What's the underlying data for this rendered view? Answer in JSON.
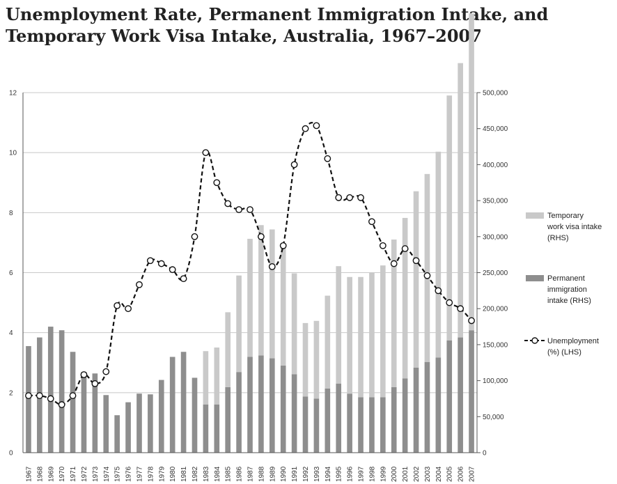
{
  "title": "Unemployment Rate, Permanent Immigration Intake, and Temporary Work Visa Intake, Australia, 1967–2007",
  "chart_data": {
    "type": "bar",
    "title": "Unemployment Rate, Permanent Immigration Intake, and Temporary Work Visa Intake, Australia, 1967–2007",
    "categories": [
      "1967",
      "1968",
      "1969",
      "1970",
      "1971",
      "1972",
      "1973",
      "1974",
      "1975",
      "1976",
      "1977",
      "1978",
      "1979",
      "1980",
      "1981",
      "1982",
      "1983",
      "1984",
      "1985",
      "1986",
      "1987",
      "1988",
      "1989",
      "1990",
      "1991",
      "1992",
      "1993",
      "1994",
      "1995",
      "1996",
      "1997",
      "1998",
      "1999",
      "2000",
      "2001",
      "2002",
      "2003",
      "2004",
      "2005",
      "2006",
      "2007"
    ],
    "y_left": {
      "range": [
        0,
        12
      ],
      "ticks": [
        "0",
        "2",
        "4",
        "6",
        "8",
        "10",
        "12"
      ]
    },
    "y_right": {
      "range": [
        0,
        500000
      ],
      "ticks": [
        "0",
        "50,000",
        "100,000",
        "150,000",
        "200,000",
        "250,000",
        "300,000",
        "350,000",
        "400,000",
        "450,000",
        "500,000"
      ]
    },
    "grid": true,
    "series": [
      {
        "name": "Permanent immigration intake (RHS)",
        "type": "bar",
        "axis": "right",
        "color": "#8e8e8e",
        "values": [
          148000,
          160000,
          175000,
          170000,
          140000,
          112000,
          110000,
          80000,
          52000,
          70000,
          82000,
          81000,
          101000,
          133000,
          140000,
          104000,
          67000,
          67000,
          91000,
          112000,
          133000,
          135000,
          131000,
          121000,
          109000,
          78000,
          75000,
          89000,
          96000,
          82000,
          77000,
          77000,
          77000,
          91000,
          103000,
          118000,
          126000,
          132000,
          156000,
          160000,
          170000
        ]
      },
      {
        "name": "Temporary work visa intake (RHS)",
        "type": "bar",
        "stacked": true,
        "axis": "right",
        "color": "#c9c9c9",
        "values": [
          0,
          0,
          0,
          0,
          0,
          0,
          0,
          0,
          0,
          0,
          0,
          0,
          0,
          0,
          0,
          0,
          74000,
          79000,
          104000,
          134000,
          164000,
          181000,
          179000,
          166000,
          140000,
          102000,
          108000,
          129000,
          163000,
          162000,
          167000,
          173000,
          183000,
          205000,
          223000,
          245000,
          261000,
          286000,
          340000,
          381000,
          440000
        ]
      },
      {
        "name": "Unemployment (%) (LHS)",
        "type": "line",
        "axis": "left",
        "color": "#111111",
        "dashed": true,
        "marker": "open-circle",
        "values": [
          1.9,
          1.9,
          1.8,
          1.6,
          1.9,
          2.6,
          2.3,
          2.7,
          4.9,
          4.8,
          5.6,
          6.4,
          6.3,
          6.1,
          5.8,
          7.2,
          10.0,
          9.0,
          8.3,
          8.1,
          8.1,
          7.2,
          6.2,
          6.9,
          9.6,
          10.8,
          10.9,
          9.8,
          8.5,
          8.5,
          8.5,
          7.7,
          6.9,
          6.3,
          6.8,
          6.4,
          5.9,
          5.4,
          5.0,
          4.8,
          4.4
        ]
      }
    ],
    "legend": {
      "placement": "right",
      "items": [
        {
          "key": "temp",
          "label": [
            "Temporary",
            "work visa intake",
            "(RHS)"
          ]
        },
        {
          "key": "perm",
          "label": [
            "Permanent",
            "immigration",
            "intake (RHS)"
          ]
        },
        {
          "key": "unemp",
          "label": [
            "Unemployment",
            "(%) (LHS)"
          ]
        }
      ]
    }
  }
}
